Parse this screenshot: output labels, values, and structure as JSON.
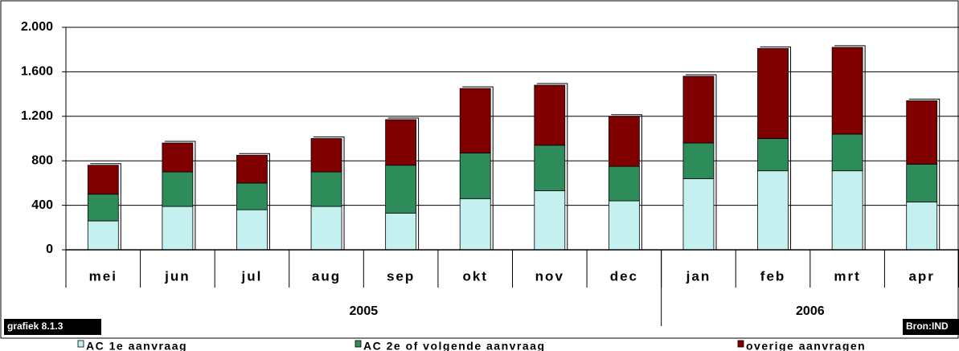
{
  "chart_data": {
    "type": "stacked-bar",
    "categories": [
      "mei",
      "jun",
      "jul",
      "aug",
      "sep",
      "okt",
      "nov",
      "dec",
      "jan",
      "feb",
      "mrt",
      "apr"
    ],
    "groups": [
      {
        "label": "2005",
        "span": 8
      },
      {
        "label": "2006",
        "span": 4
      }
    ],
    "series": [
      {
        "name": "AC 1e aanvraag",
        "color": "#c4f0f0",
        "values": [
          260,
          390,
          360,
          390,
          330,
          460,
          530,
          440,
          640,
          710,
          710,
          430
        ]
      },
      {
        "name": "AC 2e of volgende aanvraag",
        "color": "#2e8b5a",
        "values": [
          240,
          310,
          240,
          310,
          430,
          410,
          410,
          310,
          320,
          290,
          330,
          340
        ]
      },
      {
        "name": "overige aanvragen",
        "color": "#800000",
        "values": [
          260,
          260,
          250,
          300,
          410,
          580,
          540,
          450,
          600,
          810,
          780,
          570
        ]
      }
    ],
    "ylim": [
      0,
      2000
    ],
    "yticks": [
      0,
      400,
      800,
      {
        "value": 1200,
        "label": "1.200"
      },
      {
        "value": 1600,
        "label": "1.600"
      },
      {
        "value": 2000,
        "label": "2.000"
      }
    ],
    "grid": true,
    "caption": "grafiek 8.1.3",
    "source": "Bron:IND"
  }
}
